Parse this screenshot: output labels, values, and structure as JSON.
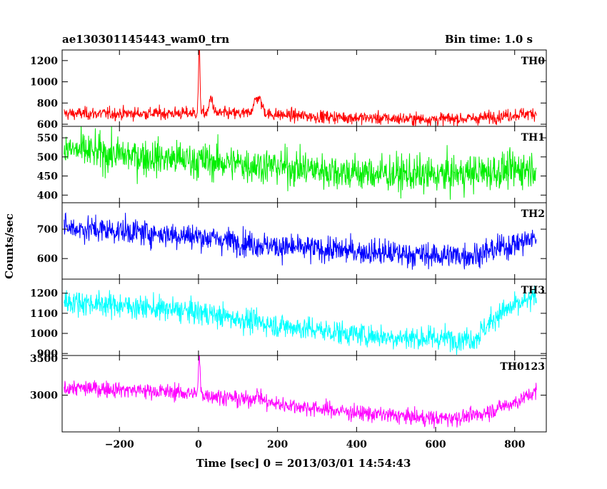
{
  "chart_data": {
    "type": "line",
    "title_left": "ae130301145443_wam0_trn",
    "title_right": "Bin time: 1.0 s",
    "xlabel": "Time [sec] 0 = 2013/03/01 14:54:43",
    "ylabel": "Counts/sec",
    "xlim": [
      -345,
      880
    ],
    "x_ticks": [
      -200,
      0,
      200,
      400,
      600,
      800
    ],
    "x_tick_labels": [
      "−200",
      "0",
      "200",
      "400",
      "600",
      "800"
    ],
    "grid": false,
    "panels": [
      {
        "name": "TH0",
        "color": "#ff0000",
        "ylim": [
          580,
          1300
        ],
        "y_ticks": [
          600,
          800,
          1000,
          1200
        ],
        "trend": [
          [
            -340,
            700
          ],
          [
            -200,
            700
          ],
          [
            0,
            705
          ],
          [
            100,
            700
          ],
          [
            200,
            690
          ],
          [
            300,
            672
          ],
          [
            400,
            662
          ],
          [
            500,
            652
          ],
          [
            600,
            648
          ],
          [
            700,
            655
          ],
          [
            800,
            690
          ],
          [
            855,
            705
          ]
        ],
        "noise": 30,
        "features": [
          {
            "x": 2,
            "peak": 1300,
            "width": 2
          },
          {
            "x": 32,
            "peak": 860,
            "width": 4
          },
          {
            "x": 150,
            "peak": 850,
            "width": 10
          }
        ]
      },
      {
        "name": "TH1",
        "color": "#00ee00",
        "ylim": [
          380,
          580
        ],
        "y_ticks": [
          400,
          450,
          500,
          550
        ],
        "trend": [
          [
            -340,
            520
          ],
          [
            -200,
            505
          ],
          [
            0,
            490
          ],
          [
            200,
            475
          ],
          [
            400,
            458
          ],
          [
            600,
            452
          ],
          [
            800,
            465
          ],
          [
            855,
            475
          ]
        ],
        "noise": 24,
        "features": []
      },
      {
        "name": "TH2",
        "color": "#0000ff",
        "ylim": [
          530,
          790
        ],
        "y_ticks": [
          600,
          700
        ],
        "trend": [
          [
            -340,
            705
          ],
          [
            -200,
            695
          ],
          [
            0,
            675
          ],
          [
            200,
            640
          ],
          [
            400,
            625
          ],
          [
            600,
            610
          ],
          [
            700,
            612
          ],
          [
            800,
            650
          ],
          [
            855,
            670
          ]
        ],
        "noise": 22,
        "features": []
      },
      {
        "name": "TH3",
        "color": "#00ffff",
        "ylim": [
          890,
          1270
        ],
        "y_ticks": [
          900,
          1000,
          1100,
          1200
        ],
        "trend": [
          [
            -340,
            1160
          ],
          [
            -200,
            1140
          ],
          [
            0,
            1105
          ],
          [
            200,
            1040
          ],
          [
            400,
            995
          ],
          [
            500,
            980
          ],
          [
            600,
            975
          ],
          [
            700,
            975
          ],
          [
            760,
            1100
          ],
          [
            855,
            1180
          ]
        ],
        "noise": 30,
        "features": []
      },
      {
        "name": "TH0123",
        "color": "#ff00ff",
        "ylim": [
          2500,
          3540
        ],
        "y_ticks": [
          3000,
          3500
        ],
        "trend": [
          [
            -340,
            3100
          ],
          [
            -200,
            3080
          ],
          [
            0,
            3020
          ],
          [
            200,
            2880
          ],
          [
            400,
            2760
          ],
          [
            600,
            2680
          ],
          [
            700,
            2720
          ],
          [
            800,
            2900
          ],
          [
            855,
            3050
          ]
        ],
        "noise": 55,
        "features": [
          {
            "x": 2,
            "peak": 3540,
            "width": 2
          },
          {
            "x": 150,
            "peak": 3000,
            "width": 10
          }
        ]
      }
    ]
  }
}
